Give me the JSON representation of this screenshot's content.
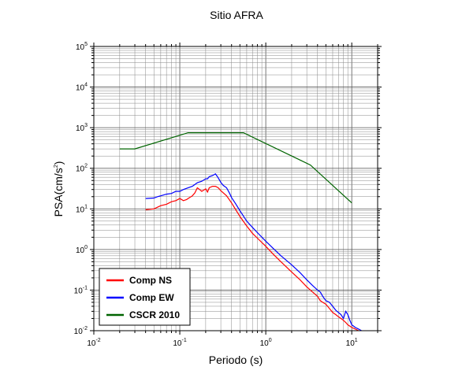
{
  "chart_data": {
    "type": "line",
    "title": "Sitio AFRA",
    "xlabel": "Periodo (s)",
    "ylabel_main": "PSA(cm/s",
    "ylabel_sup": "2",
    "ylabel_close": ")",
    "x_scale": "log",
    "y_scale": "log",
    "xlim": [
      0.01,
      20
    ],
    "ylim": [
      0.01,
      100000
    ],
    "grid": true,
    "legend_position": "bottom-left",
    "x_ticks": [
      {
        "base": "10",
        "exp": "-2",
        "value": 0.01
      },
      {
        "base": "10",
        "exp": "-1",
        "value": 0.1
      },
      {
        "base": "10",
        "exp": "0",
        "value": 1
      },
      {
        "base": "10",
        "exp": "1",
        "value": 10
      }
    ],
    "y_ticks": [
      {
        "base": "10",
        "exp": "-2",
        "value": 0.01
      },
      {
        "base": "10",
        "exp": "-1",
        "value": 0.1
      },
      {
        "base": "10",
        "exp": "0",
        "value": 1
      },
      {
        "base": "10",
        "exp": "1",
        "value": 10
      },
      {
        "base": "10",
        "exp": "2",
        "value": 100
      },
      {
        "base": "10",
        "exp": "3",
        "value": 1000
      },
      {
        "base": "10",
        "exp": "4",
        "value": 10000
      },
      {
        "base": "10",
        "exp": "5",
        "value": 100000
      }
    ],
    "series": [
      {
        "name": "Comp NS",
        "color": "#ff0000",
        "points": [
          [
            0.04,
            9.5
          ],
          [
            0.05,
            10
          ],
          [
            0.055,
            11
          ],
          [
            0.06,
            12
          ],
          [
            0.07,
            13
          ],
          [
            0.08,
            15
          ],
          [
            0.09,
            16
          ],
          [
            0.1,
            18
          ],
          [
            0.11,
            16
          ],
          [
            0.12,
            17
          ],
          [
            0.13,
            19
          ],
          [
            0.14,
            21
          ],
          [
            0.15,
            25
          ],
          [
            0.16,
            33
          ],
          [
            0.17,
            30
          ],
          [
            0.18,
            27
          ],
          [
            0.19,
            29
          ],
          [
            0.2,
            31
          ],
          [
            0.21,
            26
          ],
          [
            0.22,
            33
          ],
          [
            0.24,
            36
          ],
          [
            0.26,
            36
          ],
          [
            0.28,
            33
          ],
          [
            0.3,
            28
          ],
          [
            0.35,
            21
          ],
          [
            0.4,
            14
          ],
          [
            0.5,
            6.5
          ],
          [
            0.6,
            3.8
          ],
          [
            0.7,
            2.5
          ],
          [
            0.8,
            1.9
          ],
          [
            1.0,
            1.2
          ],
          [
            1.2,
            0.8
          ],
          [
            1.5,
            0.5
          ],
          [
            2.0,
            0.28
          ],
          [
            2.5,
            0.18
          ],
          [
            3.0,
            0.12
          ],
          [
            3.5,
            0.09
          ],
          [
            4.0,
            0.07
          ],
          [
            4.3,
            0.055
          ],
          [
            4.6,
            0.05
          ],
          [
            5.0,
            0.045
          ],
          [
            5.5,
            0.035
          ],
          [
            6.0,
            0.028
          ],
          [
            6.5,
            0.025
          ],
          [
            7.0,
            0.022
          ],
          [
            7.5,
            0.02
          ],
          [
            8.0,
            0.018
          ],
          [
            8.5,
            0.016
          ],
          [
            9.0,
            0.014
          ],
          [
            10.0,
            0.012
          ],
          [
            11.0,
            0.011
          ],
          [
            12.0,
            0.01
          ]
        ]
      },
      {
        "name": "Comp EW",
        "color": "#0000ff",
        "points": [
          [
            0.04,
            18
          ],
          [
            0.05,
            18.5
          ],
          [
            0.055,
            20
          ],
          [
            0.06,
            21
          ],
          [
            0.07,
            23
          ],
          [
            0.08,
            24
          ],
          [
            0.09,
            27
          ],
          [
            0.1,
            27
          ],
          [
            0.11,
            30
          ],
          [
            0.12,
            32
          ],
          [
            0.14,
            36
          ],
          [
            0.16,
            44
          ],
          [
            0.18,
            48
          ],
          [
            0.2,
            55
          ],
          [
            0.21,
            55
          ],
          [
            0.22,
            62
          ],
          [
            0.24,
            66
          ],
          [
            0.26,
            73
          ],
          [
            0.27,
            65
          ],
          [
            0.28,
            58
          ],
          [
            0.3,
            45
          ],
          [
            0.32,
            38
          ],
          [
            0.35,
            33
          ],
          [
            0.38,
            24
          ],
          [
            0.4,
            19
          ],
          [
            0.45,
            13
          ],
          [
            0.5,
            9
          ],
          [
            0.6,
            5
          ],
          [
            0.7,
            3.5
          ],
          [
            0.8,
            2.6
          ],
          [
            1.0,
            1.6
          ],
          [
            1.2,
            1.1
          ],
          [
            1.5,
            0.7
          ],
          [
            2.0,
            0.42
          ],
          [
            2.5,
            0.27
          ],
          [
            3.0,
            0.18
          ],
          [
            3.5,
            0.13
          ],
          [
            4.0,
            0.1
          ],
          [
            4.3,
            0.09
          ],
          [
            4.6,
            0.07
          ],
          [
            5.0,
            0.055
          ],
          [
            5.5,
            0.05
          ],
          [
            6.0,
            0.04
          ],
          [
            6.5,
            0.032
          ],
          [
            7.0,
            0.028
          ],
          [
            7.5,
            0.025
          ],
          [
            8.0,
            0.02
          ],
          [
            8.5,
            0.03
          ],
          [
            9.0,
            0.025
          ],
          [
            9.5,
            0.018
          ],
          [
            10.0,
            0.014
          ],
          [
            11.0,
            0.012
          ],
          [
            12.0,
            0.011
          ],
          [
            13.0,
            0.01
          ]
        ]
      },
      {
        "name": "CSCR 2010",
        "color": "#006400",
        "points": [
          [
            0.02,
            300
          ],
          [
            0.03,
            300
          ],
          [
            0.125,
            750
          ],
          [
            0.55,
            750
          ],
          [
            3.3,
            120
          ],
          [
            10.0,
            14
          ]
        ]
      }
    ]
  }
}
